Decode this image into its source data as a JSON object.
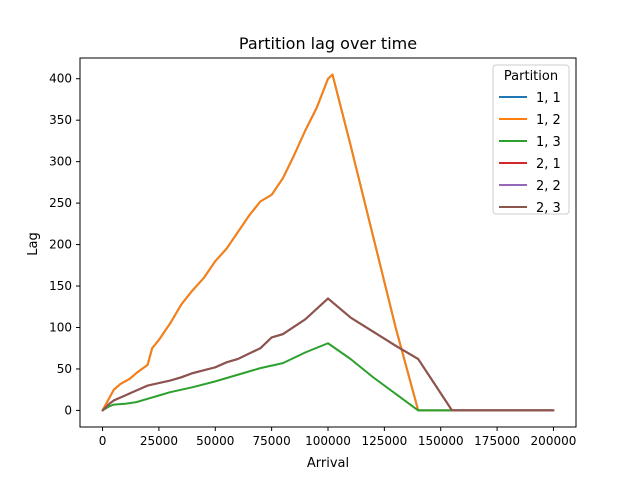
{
  "chart_data": {
    "type": "line",
    "title": "Partition lag over time",
    "xlabel": "Arrival",
    "ylabel": "Lag",
    "xlim": [
      -10000,
      210000
    ],
    "ylim": [
      -20,
      425
    ],
    "x_ticks": [
      0,
      25000,
      50000,
      75000,
      100000,
      125000,
      150000,
      175000,
      200000
    ],
    "y_ticks": [
      0,
      50,
      100,
      150,
      200,
      250,
      300,
      350,
      400
    ],
    "grid": false,
    "legend": {
      "title": "Partition",
      "placement": "top-right"
    },
    "series": [
      {
        "name": "1, 1",
        "color": "#1f77b4",
        "hidden_behind": "1, 2",
        "x": [
          0,
          3000,
          5000,
          8000,
          12000,
          15000,
          20000,
          22000,
          25000,
          30000,
          35000,
          40000,
          45000,
          50000,
          55000,
          60000,
          65000,
          70000,
          75000,
          80000,
          85000,
          90000,
          95000,
          100000,
          102000,
          110000,
          120000,
          130000,
          140000,
          200000
        ],
        "y": [
          0,
          15,
          25,
          32,
          38,
          45,
          55,
          75,
          85,
          105,
          128,
          145,
          160,
          180,
          195,
          215,
          235,
          252,
          260,
          280,
          308,
          338,
          365,
          400,
          405,
          320,
          210,
          100,
          0,
          0
        ]
      },
      {
        "name": "1, 2",
        "color": "#ff7f0e",
        "x": [
          0,
          3000,
          5000,
          8000,
          12000,
          15000,
          20000,
          22000,
          25000,
          30000,
          35000,
          40000,
          45000,
          50000,
          55000,
          60000,
          65000,
          70000,
          75000,
          80000,
          85000,
          90000,
          95000,
          100000,
          102000,
          110000,
          120000,
          130000,
          140000,
          200000
        ],
        "y": [
          0,
          15,
          25,
          32,
          38,
          45,
          55,
          75,
          85,
          105,
          128,
          145,
          160,
          180,
          195,
          215,
          235,
          252,
          260,
          280,
          308,
          338,
          365,
          400,
          405,
          320,
          210,
          100,
          0,
          0
        ]
      },
      {
        "name": "1, 3",
        "color": "#2ca02c",
        "x": [
          0,
          3000,
          5000,
          10000,
          15000,
          20000,
          25000,
          30000,
          40000,
          50000,
          60000,
          70000,
          80000,
          90000,
          100000,
          110000,
          120000,
          130000,
          140000,
          200000
        ],
        "y": [
          0,
          5,
          7,
          8,
          10,
          14,
          18,
          22,
          28,
          35,
          43,
          51,
          57,
          70,
          81,
          62,
          40,
          20,
          0,
          0
        ]
      },
      {
        "name": "2, 1",
        "color": "#d62728",
        "hidden_behind": "2, 3",
        "x": [
          0,
          3000,
          5000,
          10000,
          15000,
          20000,
          25000,
          30000,
          35000,
          40000,
          50000,
          55000,
          60000,
          70000,
          75000,
          80000,
          90000,
          100000,
          110000,
          120000,
          130000,
          140000,
          155000,
          200000
        ],
        "y": [
          0,
          8,
          12,
          18,
          24,
          30,
          33,
          36,
          40,
          45,
          52,
          58,
          62,
          75,
          88,
          92,
          110,
          135,
          112,
          95,
          78,
          62,
          0,
          0
        ]
      },
      {
        "name": "2, 2",
        "color": "#9467bd",
        "hidden_behind": "2, 3",
        "x": [
          0,
          3000,
          5000,
          10000,
          15000,
          20000,
          25000,
          30000,
          35000,
          40000,
          50000,
          55000,
          60000,
          70000,
          75000,
          80000,
          90000,
          100000,
          110000,
          120000,
          130000,
          140000,
          155000,
          200000
        ],
        "y": [
          0,
          8,
          12,
          18,
          24,
          30,
          33,
          36,
          40,
          45,
          52,
          58,
          62,
          75,
          88,
          92,
          110,
          135,
          112,
          95,
          78,
          62,
          0,
          0
        ]
      },
      {
        "name": "2, 3",
        "color": "#8c564b",
        "x": [
          0,
          3000,
          5000,
          10000,
          15000,
          20000,
          25000,
          30000,
          35000,
          40000,
          50000,
          55000,
          60000,
          70000,
          75000,
          80000,
          90000,
          100000,
          110000,
          120000,
          130000,
          140000,
          155000,
          200000
        ],
        "y": [
          0,
          8,
          12,
          18,
          24,
          30,
          33,
          36,
          40,
          45,
          52,
          58,
          62,
          75,
          88,
          92,
          110,
          135,
          112,
          95,
          78,
          62,
          0,
          0
        ]
      }
    ]
  }
}
